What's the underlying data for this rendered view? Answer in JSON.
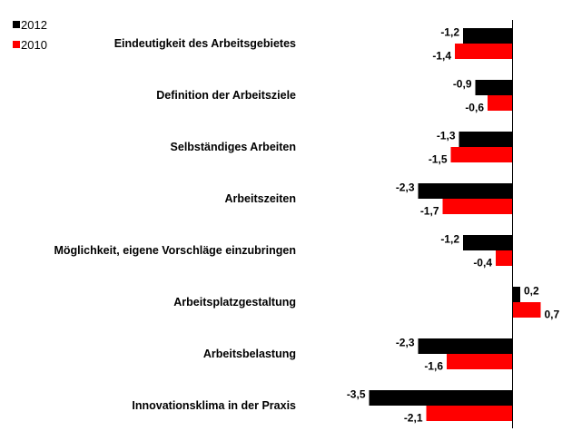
{
  "chart_data": {
    "type": "bar",
    "orientation": "horizontal",
    "title": "",
    "xlabel": "",
    "ylabel": "",
    "categories": [
      "Eindeutigkeit des Arbeitsgebietes",
      "Definition der Arbeitsziele",
      "Selbständiges Arbeiten",
      "Arbeitszeiten",
      "Möglichkeit, eigene Vorschläge einzubringen",
      "Arbeitsplatzgestaltung",
      "Arbeitsbelastung",
      "Innovationsklima in der Praxis"
    ],
    "series": [
      {
        "name": "2012",
        "color": "#000000",
        "values": [
          -1.2,
          -0.9,
          -1.3,
          -2.3,
          -1.2,
          0.2,
          -2.3,
          -3.5
        ],
        "labels": [
          "-1,2",
          "-0,9",
          "-1,3",
          "-2,3",
          "-1,2",
          "0,2",
          "-2,3",
          "-3,5"
        ]
      },
      {
        "name": "2010",
        "color": "#ff0000",
        "values": [
          -1.4,
          -0.6,
          -1.5,
          -1.7,
          -0.4,
          0.7,
          -1.6,
          -2.1
        ],
        "labels": [
          "-1,4",
          "-0,6",
          "-1,5",
          "-1,7",
          "-0,4",
          "0,7",
          "-1,6",
          "-2,1"
        ]
      }
    ],
    "legend_position": "top-left",
    "grid": false
  }
}
